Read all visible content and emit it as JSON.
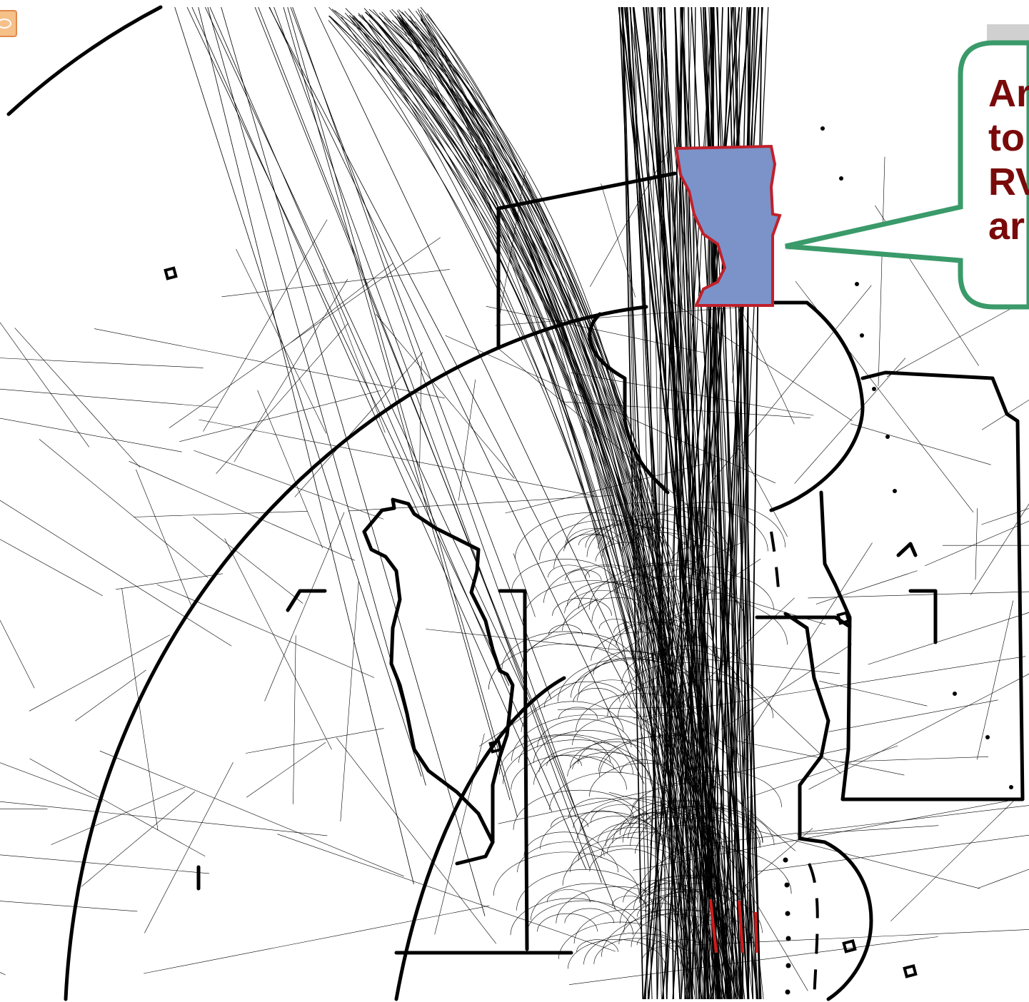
{
  "callout": {
    "lines": [
      "Ar",
      "to",
      "RV",
      "ar"
    ],
    "border_color": "#3a9a6a",
    "text_color": "#7a0a0a"
  },
  "highlight_area": {
    "fill": "#7b93c8",
    "stroke": "#c0202a"
  },
  "colors": {
    "track_lines": "#000000",
    "runway_marks": "#d01c1c",
    "background": "#ffffff"
  },
  "corner_widget": {
    "icon": "expand-icon"
  }
}
